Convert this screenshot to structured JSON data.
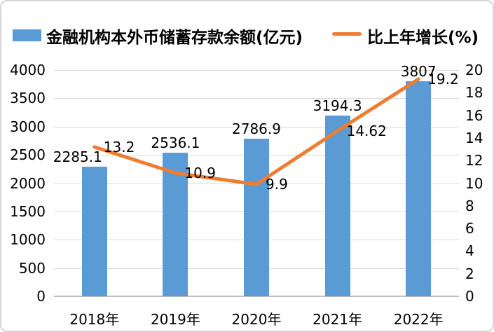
{
  "window": {
    "background": "#ffffff",
    "border_color": "#d6d4d4"
  },
  "colors": {
    "bar": "#5B9BD5",
    "line": "#ED7D31",
    "gridline": "#D9D9D9",
    "axis_line": "#BFBFBF",
    "text": "#000000"
  },
  "chart_data": {
    "type": "bar",
    "subtype": "combo-bar-line-dual-axis",
    "categories": [
      "2018年",
      "2019年",
      "2020年",
      "2021年",
      "2022年"
    ],
    "series": [
      {
        "name": "金融机构本外币储蓄存款余额(亿元)",
        "chart_type": "bar",
        "axis": "left",
        "color": "#5B9BD5",
        "values": [
          2285.1,
          2536.1,
          2786.9,
          3194.3,
          3807
        ],
        "labels": [
          "2285.1",
          "2536.1",
          "2786.9",
          "3194.3",
          "3807"
        ]
      },
      {
        "name": "比上年增长(%)",
        "chart_type": "line",
        "axis": "right",
        "color": "#ED7D31",
        "values": [
          13.2,
          10.9,
          9.9,
          14.62,
          19.2
        ],
        "labels": [
          "13.2",
          "10.9",
          "9.9",
          "14.62",
          "19.2"
        ]
      }
    ],
    "left_axis": {
      "min": 0,
      "max": 4000,
      "step": 500,
      "ticks": [
        0,
        500,
        1000,
        1500,
        2000,
        2500,
        3000,
        3500,
        4000
      ]
    },
    "right_axis": {
      "min": 0,
      "max": 20,
      "step": 2,
      "ticks": [
        0,
        2,
        4,
        6,
        8,
        10,
        12,
        14,
        16,
        18,
        20
      ]
    },
    "grid": {
      "horizontal": true
    },
    "legend_position": "top",
    "data_labels": true,
    "title": "",
    "xlabel": "",
    "ylabel": ""
  }
}
